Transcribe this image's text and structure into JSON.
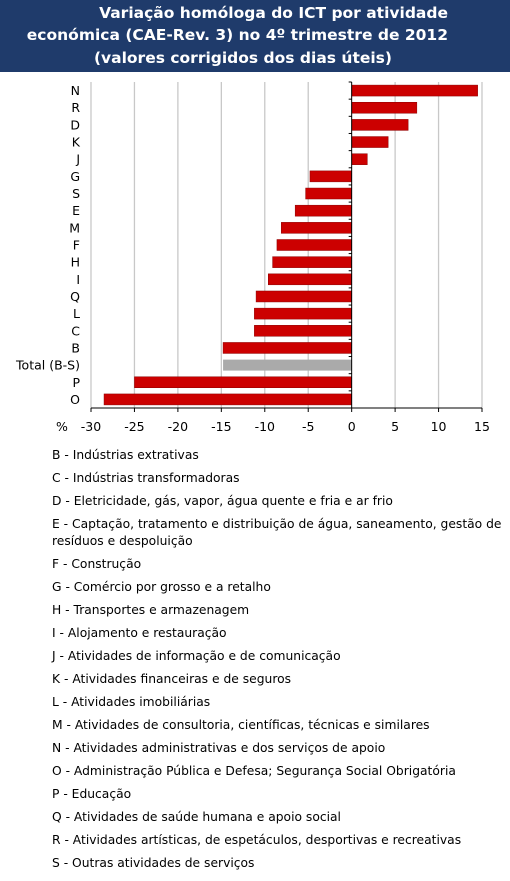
{
  "title": {
    "line1": "Variação homóloga do ICT por atividade",
    "line2": "económica (CAE-Rev. 3) no 4º trimestre de 2012",
    "line3": "(valores corrigidos dos dias úteis)"
  },
  "chart_data": {
    "type": "bar",
    "orientation": "horizontal",
    "categories": [
      "N",
      "R",
      "D",
      "K",
      "J",
      "G",
      "S",
      "E",
      "M",
      "F",
      "H",
      "I",
      "Q",
      "L",
      "C",
      "B",
      "Total (B-S)",
      "P",
      "O"
    ],
    "values": [
      14.5,
      7.5,
      6.5,
      4.2,
      1.8,
      -4.8,
      -5.3,
      -6.5,
      -8.1,
      -8.6,
      -9.1,
      -9.6,
      -11.0,
      -11.2,
      -11.2,
      -14.8,
      -14.8,
      -25.0,
      -28.5
    ],
    "highlight": "Total (B-S)",
    "xlim": [
      -30,
      15
    ],
    "xticks": [
      -30,
      -25,
      -20,
      -15,
      -10,
      -5,
      0,
      5,
      10,
      15
    ],
    "xunit": "%",
    "bar_color": "#cc0000",
    "highlight_color": "#aaaaaa",
    "grid": true
  },
  "legend": [
    "B - Indústrias extrativas",
    "C - Indústrias transformadoras",
    "D - Eletricidade, gás, vapor, água quente e fria e ar frio",
    "E - Captação, tratamento e distribuição de água, saneamento, gestão de resíduos e despoluição",
    "F - Construção",
    "G - Comércio por grosso e a retalho",
    "H - Transportes e armazenagem",
    "I - Alojamento e restauração",
    "J - Atividades de informação e de comunicação",
    "K - Atividades financeiras e de seguros",
    "L - Atividades imobiliárias",
    "M - Atividades de consultoria, científicas, técnicas e similares",
    "N - Atividades administrativas e dos serviços de apoio",
    "O - Administração Pública e Defesa; Segurança Social Obrigatória",
    "P - Educação",
    "Q - Atividades de saúde humana e apoio social",
    "R - Atividades artísticas, de espetáculos, desportivas e recreativas",
    "S - Outras atividades de serviços"
  ]
}
